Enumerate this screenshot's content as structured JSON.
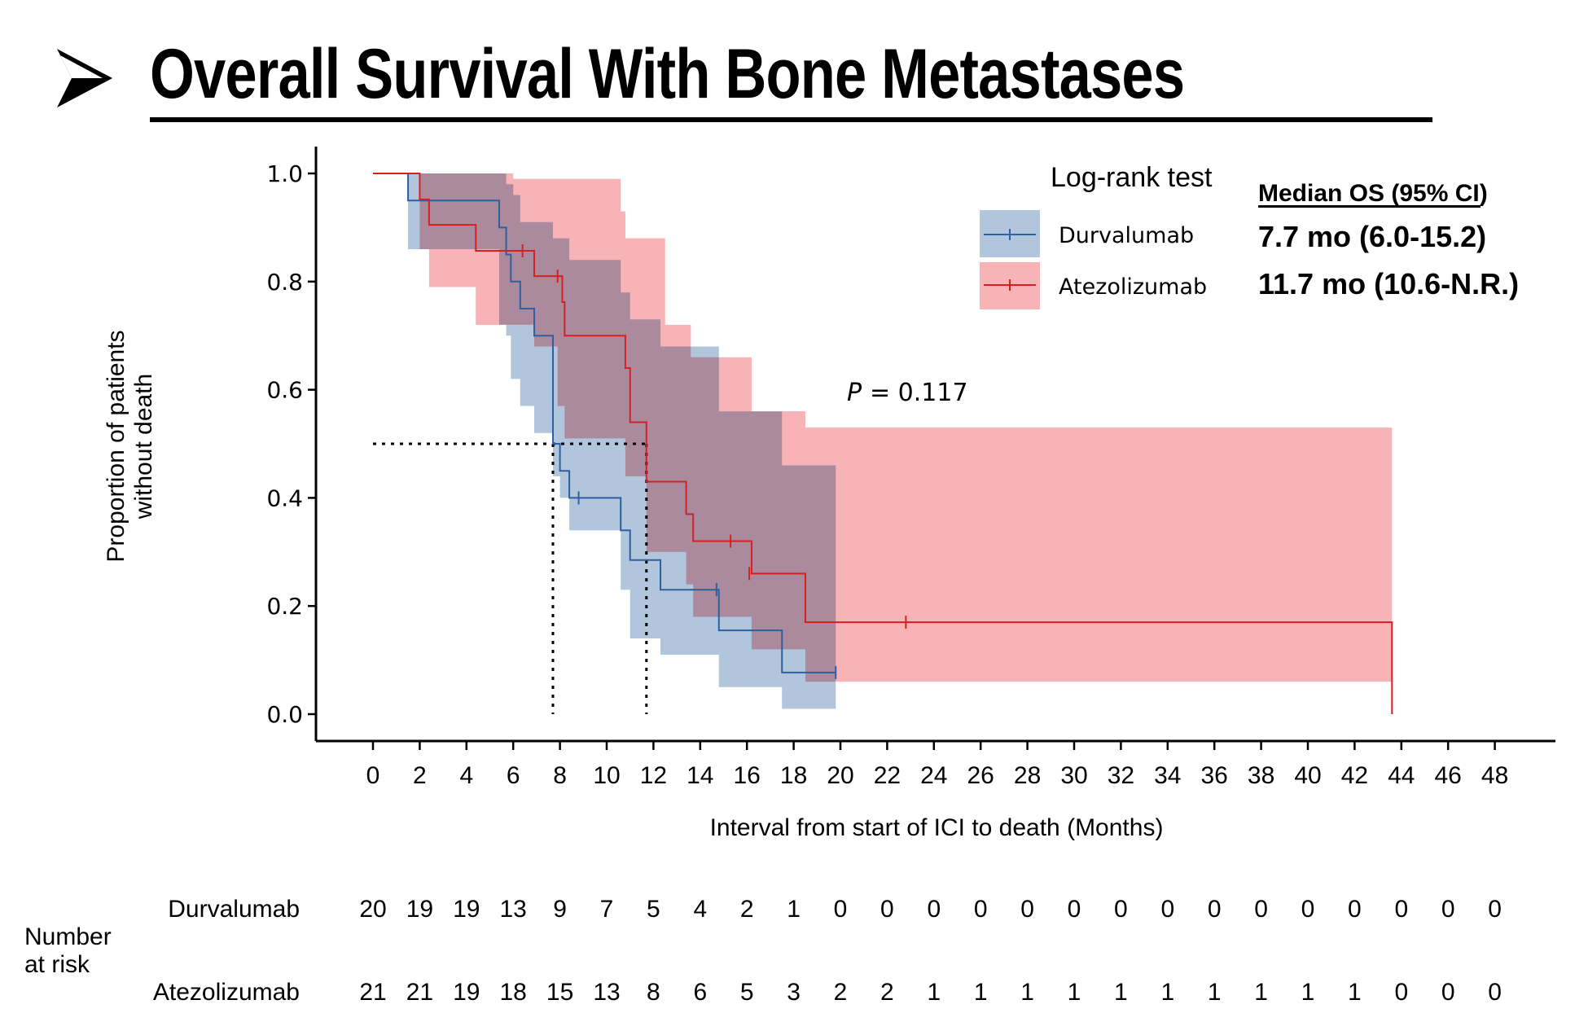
{
  "title": "Overall Survival With Bone Metastases",
  "chart_data": {
    "type": "line",
    "subtype": "kaplan-meier",
    "title": "Overall Survival With Bone Metastases",
    "xlabel": "Interval from start of ICI to death (Months)",
    "ylabel_line1": "Proportion of patients",
    "ylabel_line2": "without death",
    "xlim": [
      0,
      48
    ],
    "ylim": [
      0,
      1.0
    ],
    "xticks": [
      0,
      2,
      4,
      6,
      8,
      10,
      12,
      14,
      16,
      18,
      20,
      22,
      24,
      26,
      28,
      30,
      32,
      34,
      36,
      38,
      40,
      42,
      44,
      46,
      48
    ],
    "xtick_labels": [
      "0",
      "2",
      "4",
      "6",
      "8",
      "10",
      "12",
      "14",
      "16",
      "18",
      "20",
      "22",
      "24",
      "26",
      "28",
      "30",
      "32",
      "34",
      "36",
      "38",
      "40",
      "42",
      "44",
      "46",
      "48"
    ],
    "yticks": [
      0.0,
      0.2,
      0.4,
      0.6,
      0.8,
      1.0
    ],
    "ytick_labels": [
      "0.0",
      "0.2",
      "0.4",
      "0.6",
      "0.8",
      "1.0"
    ],
    "grid": false,
    "legend_title": "Log-rank test",
    "legend_placement": "top-right",
    "median_header": "Median OS (95% CI)",
    "p_value_label": "P",
    "p_value_text": "= 0.117",
    "median_line_y": 0.5,
    "series": [
      {
        "name": "Durvalumab",
        "color": "#2e5f9e",
        "ci_color": "#9db7d5",
        "median": 7.7,
        "median_text": "7.7 mo (6.0-15.2)",
        "steps": [
          [
            0,
            1.0
          ],
          [
            1.5,
            0.95
          ],
          [
            5.4,
            0.9
          ],
          [
            5.7,
            0.85
          ],
          [
            5.9,
            0.8
          ],
          [
            6.3,
            0.75
          ],
          [
            6.9,
            0.7
          ],
          [
            7.7,
            0.65
          ],
          [
            7.7,
            0.5
          ],
          [
            8.0,
            0.45
          ],
          [
            8.4,
            0.4
          ],
          [
            10.6,
            0.34
          ],
          [
            11.0,
            0.285
          ],
          [
            12.3,
            0.23
          ],
          [
            14.8,
            0.155
          ],
          [
            17.5,
            0.077
          ],
          [
            19.8,
            0.077
          ]
        ],
        "ci_upper": [
          [
            0,
            1.0
          ],
          [
            1.5,
            1.0
          ],
          [
            5.4,
            1.0
          ],
          [
            5.7,
            0.98
          ],
          [
            6.0,
            0.96
          ],
          [
            6.3,
            0.91
          ],
          [
            7.7,
            0.88
          ],
          [
            8.4,
            0.84
          ],
          [
            10.6,
            0.78
          ],
          [
            11.0,
            0.73
          ],
          [
            12.3,
            0.68
          ],
          [
            14.8,
            0.56
          ],
          [
            17.5,
            0.46
          ],
          [
            19.8,
            0.46
          ]
        ],
        "ci_lower": [
          [
            0,
            1.0
          ],
          [
            1.5,
            0.86
          ],
          [
            2.0,
            0.86
          ],
          [
            5.4,
            0.72
          ],
          [
            5.7,
            0.7
          ],
          [
            5.9,
            0.62
          ],
          [
            6.3,
            0.57
          ],
          [
            6.9,
            0.52
          ],
          [
            7.7,
            0.44
          ],
          [
            8.0,
            0.4
          ],
          [
            8.4,
            0.34
          ],
          [
            10.6,
            0.23
          ],
          [
            11.0,
            0.14
          ],
          [
            12.3,
            0.11
          ],
          [
            14.8,
            0.05
          ],
          [
            17.5,
            0.01
          ],
          [
            19.8,
            0.01
          ]
        ],
        "censor_marks": [
          [
            8.8,
            0.4
          ],
          [
            14.7,
            0.23
          ],
          [
            19.8,
            0.077
          ]
        ],
        "at_risk": [
          20,
          19,
          19,
          13,
          9,
          7,
          5,
          4,
          2,
          1,
          0,
          0,
          0,
          0,
          0,
          0,
          0,
          0,
          0,
          0,
          0,
          0,
          0,
          0,
          0
        ]
      },
      {
        "name": "Atezolizumab",
        "color": "#d62020",
        "ci_color": "#f49a9c",
        "median": 11.7,
        "median_text": "11.7 mo (10.6-N.R.)",
        "steps": [
          [
            0,
            1.0
          ],
          [
            2.0,
            0.952
          ],
          [
            2.4,
            0.905
          ],
          [
            4.4,
            0.857
          ],
          [
            6.9,
            0.81
          ],
          [
            8.1,
            0.762
          ],
          [
            8.2,
            0.7
          ],
          [
            10.8,
            0.64
          ],
          [
            11.0,
            0.54
          ],
          [
            11.7,
            0.43
          ],
          [
            13.4,
            0.37
          ],
          [
            13.7,
            0.32
          ],
          [
            16.2,
            0.26
          ],
          [
            18.5,
            0.17
          ],
          [
            43.6,
            0.17
          ],
          [
            43.6,
            0.0
          ]
        ],
        "ci_upper": [
          [
            0,
            1.0
          ],
          [
            5.4,
            1.0
          ],
          [
            6.0,
            0.99
          ],
          [
            10.6,
            0.93
          ],
          [
            10.8,
            0.88
          ],
          [
            12.5,
            0.72
          ],
          [
            13.6,
            0.66
          ],
          [
            16.2,
            0.56
          ],
          [
            18.5,
            0.53
          ],
          [
            43.6,
            0.53
          ]
        ],
        "ci_lower": [
          [
            0,
            1.0
          ],
          [
            2.0,
            0.86
          ],
          [
            2.4,
            0.79
          ],
          [
            4.4,
            0.72
          ],
          [
            6.9,
            0.68
          ],
          [
            7.9,
            0.57
          ],
          [
            8.2,
            0.51
          ],
          [
            10.8,
            0.44
          ],
          [
            11.7,
            0.3
          ],
          [
            13.4,
            0.24
          ],
          [
            13.7,
            0.18
          ],
          [
            16.2,
            0.12
          ],
          [
            18.5,
            0.06
          ],
          [
            43.6,
            0.06
          ]
        ],
        "censor_marks": [
          [
            6.4,
            0.857
          ],
          [
            7.9,
            0.81
          ],
          [
            15.3,
            0.32
          ],
          [
            16.1,
            0.26
          ],
          [
            22.8,
            0.17
          ]
        ],
        "at_risk": [
          21,
          21,
          19,
          18,
          15,
          13,
          8,
          6,
          5,
          3,
          2,
          2,
          1,
          1,
          1,
          1,
          1,
          1,
          1,
          1,
          1,
          1,
          0,
          0,
          0
        ]
      }
    ]
  },
  "risk_table": {
    "title_line1": "Number",
    "title_line2": "at risk"
  }
}
